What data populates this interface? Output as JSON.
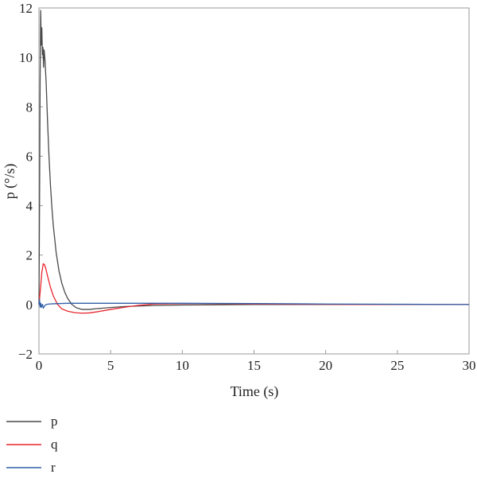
{
  "chart_data": {
    "type": "line",
    "title": "",
    "xlabel": "Time (s)",
    "ylabel": "p (°/s)",
    "xlim": [
      0,
      30
    ],
    "ylim": [
      -2,
      12
    ],
    "x_ticks": [
      0,
      5,
      10,
      15,
      20,
      25,
      30
    ],
    "y_ticks": [
      -2,
      0,
      2,
      4,
      6,
      8,
      10,
      12
    ],
    "grid": false,
    "legend_position": "below-left",
    "series": [
      {
        "name": "p",
        "color": "#4a4a4a",
        "points": [
          [
            0,
            0
          ],
          [
            0.04,
            4
          ],
          [
            0.08,
            9
          ],
          [
            0.12,
            11.9
          ],
          [
            0.16,
            10.5
          ],
          [
            0.2,
            11.2
          ],
          [
            0.24,
            10.1
          ],
          [
            0.28,
            10.4
          ],
          [
            0.32,
            9.6
          ],
          [
            0.36,
            10.3
          ],
          [
            0.42,
            9.9
          ],
          [
            0.5,
            9.0
          ],
          [
            0.6,
            7.4
          ],
          [
            0.7,
            6.0
          ],
          [
            0.8,
            4.85
          ],
          [
            0.9,
            3.95
          ],
          [
            1.0,
            3.2
          ],
          [
            1.2,
            2.1
          ],
          [
            1.4,
            1.35
          ],
          [
            1.6,
            0.85
          ],
          [
            1.8,
            0.5
          ],
          [
            2.0,
            0.25
          ],
          [
            2.3,
            0.0
          ],
          [
            2.6,
            -0.13
          ],
          [
            3.0,
            -0.2
          ],
          [
            3.5,
            -0.2
          ],
          [
            4.0,
            -0.17
          ],
          [
            5.0,
            -0.12
          ],
          [
            6.0,
            -0.08
          ],
          [
            8.0,
            -0.04
          ],
          [
            10.0,
            -0.02
          ],
          [
            15.0,
            0.0
          ],
          [
            20.0,
            0.0
          ],
          [
            30.0,
            0.0
          ]
        ]
      },
      {
        "name": "q",
        "color": "#e8262d",
        "points": [
          [
            0,
            0
          ],
          [
            0.1,
            0.6
          ],
          [
            0.2,
            1.3
          ],
          [
            0.3,
            1.65
          ],
          [
            0.4,
            1.6
          ],
          [
            0.5,
            1.4
          ],
          [
            0.6,
            1.15
          ],
          [
            0.8,
            0.7
          ],
          [
            1.0,
            0.35
          ],
          [
            1.3,
            0.0
          ],
          [
            1.6,
            -0.18
          ],
          [
            2.0,
            -0.27
          ],
          [
            2.5,
            -0.33
          ],
          [
            3.0,
            -0.35
          ],
          [
            3.5,
            -0.34
          ],
          [
            4.0,
            -0.3
          ],
          [
            5.0,
            -0.2
          ],
          [
            6.0,
            -0.11
          ],
          [
            7.0,
            -0.03
          ],
          [
            8.0,
            0.02
          ],
          [
            9.0,
            0.03
          ],
          [
            11.0,
            0.04
          ],
          [
            14.0,
            0.03
          ],
          [
            18.0,
            0.01
          ],
          [
            22.0,
            0.0
          ],
          [
            30.0,
            0.0
          ]
        ]
      },
      {
        "name": "r",
        "color": "#2f5fa8",
        "points": [
          [
            0,
            0
          ],
          [
            0.04,
            0.2
          ],
          [
            0.08,
            -0.1
          ],
          [
            0.12,
            0.05
          ],
          [
            0.16,
            -0.12
          ],
          [
            0.2,
            -0.05
          ],
          [
            0.25,
            0.0
          ],
          [
            0.3,
            -0.15
          ],
          [
            0.4,
            -0.05
          ],
          [
            0.5,
            0.0
          ],
          [
            0.7,
            0.02
          ],
          [
            1.0,
            0.03
          ],
          [
            2.0,
            0.05
          ],
          [
            5.0,
            0.05
          ],
          [
            10.0,
            0.05
          ],
          [
            15.0,
            0.04
          ],
          [
            20.0,
            0.02
          ],
          [
            25.0,
            0.01
          ],
          [
            30.0,
            0.0
          ]
        ]
      }
    ]
  }
}
